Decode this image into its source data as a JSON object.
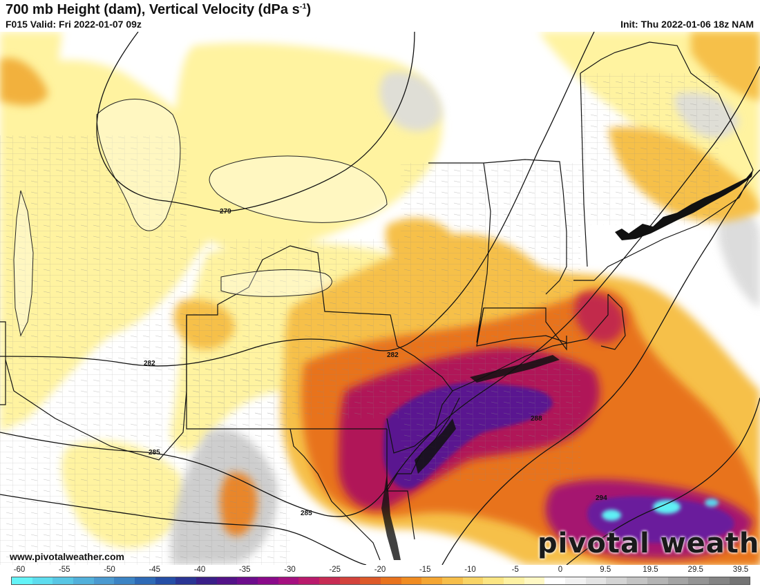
{
  "header": {
    "title": "700 mb Height (dam), Vertical Velocity (dPa s",
    "title_sup": "-1",
    "title_end": ")",
    "valid": "F015 Valid: Fri 2022-01-07 09z",
    "init": "Init: Thu 2022-01-06 18z NAM"
  },
  "map": {
    "contours": [
      {
        "label": "279"
      },
      {
        "label": "282"
      },
      {
        "label": "282"
      },
      {
        "label": "285"
      },
      {
        "label": "285"
      },
      {
        "label": "288"
      },
      {
        "label": "294"
      }
    ],
    "colors": {
      "weak_ascent": "#fff3a0",
      "moderate_ascent": "#f6c04a",
      "strong_ascent": "#e8731e",
      "very_strong_ascent": "#b01858",
      "extreme_ascent": "#5a1290",
      "descent": "#d9d9d9",
      "peak": "#5ff0f4",
      "borders": "#111111",
      "counties": "#8a8a8a"
    }
  },
  "watermark": {
    "site": "www.pivotalweather.com",
    "logo": "pivotal weather"
  },
  "colorbar": {
    "labels": [
      "-60",
      "-55",
      "-50",
      "-45",
      "-40",
      "-35",
      "-30",
      "-25",
      "-20",
      "-15",
      "-10",
      "-5",
      "0",
      "9.5",
      "19.5",
      "29.5",
      "39.5"
    ],
    "colors": [
      "#63f3f7",
      "#5edcee",
      "#58c6e4",
      "#52b0da",
      "#4b9ad0",
      "#3c84c4",
      "#2e6ab6",
      "#254ea6",
      "#2a3594",
      "#3a1f88",
      "#531388",
      "#6d0d8c",
      "#8a0a8a",
      "#a51080",
      "#b91a6c",
      "#c72c54",
      "#d3433c",
      "#dd5a2a",
      "#e8731e",
      "#f08c22",
      "#f4a633",
      "#f6be4a",
      "#f8d466",
      "#fbe583",
      "#fdf1a3",
      "#fff8c4",
      "#ffffff",
      "#f2f2f2",
      "#e4e4e4",
      "#d4d4d4",
      "#c4c4c4",
      "#b4b4b4",
      "#a4a4a4",
      "#949494",
      "#848484",
      "#747474"
    ]
  }
}
